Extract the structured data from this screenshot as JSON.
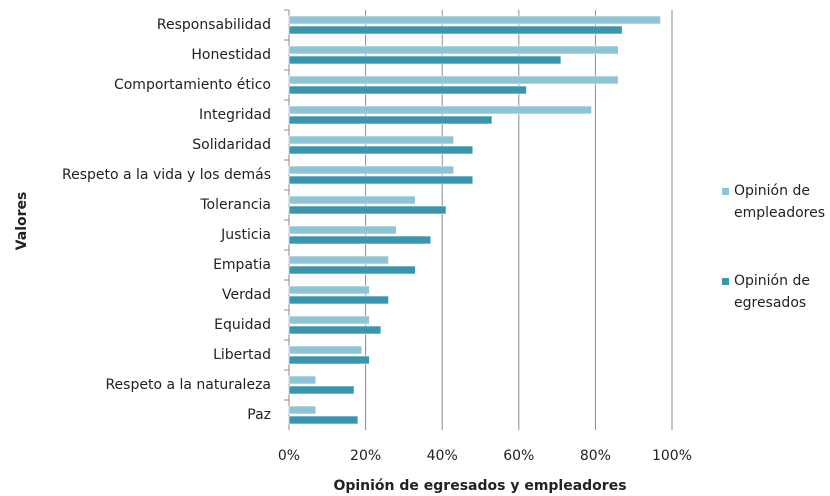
{
  "chart_data": {
    "type": "barh",
    "xlabel": "Opinión de egresados y empleadores",
    "ylabel": "Valores",
    "categories": [
      "Responsabilidad",
      "Honestidad",
      "Comportamiento ético",
      "Integridad",
      "Solidaridad",
      "Respeto a la vida y los demás",
      "Tolerancia",
      "Justicia",
      "Empatia",
      "Verdad",
      "Equidad",
      "Libertad",
      "Respeto a la naturaleza",
      "Paz"
    ],
    "series": [
      {
        "name": "Opinión de empleadores",
        "color": "#8ec4d6",
        "values": [
          97,
          86,
          86,
          79,
          43,
          43,
          33,
          28,
          26,
          21,
          21,
          19,
          7,
          7
        ]
      },
      {
        "name": "Opinión de egresados",
        "color": "#3a96ae",
        "values": [
          87,
          71,
          62,
          53,
          48,
          48,
          41,
          37,
          33,
          26,
          24,
          21,
          17,
          18
        ]
      }
    ],
    "xlim": [
      0,
      100
    ],
    "xticks": [
      {
        "value": 0,
        "label": "0%"
      },
      {
        "value": 20,
        "label": "20%"
      },
      {
        "value": 40,
        "label": "40%"
      },
      {
        "value": 60,
        "label": "60%"
      },
      {
        "value": 80,
        "label": "80%"
      },
      {
        "value": 100,
        "label": "100%"
      }
    ],
    "grid": true,
    "legend": "right"
  }
}
